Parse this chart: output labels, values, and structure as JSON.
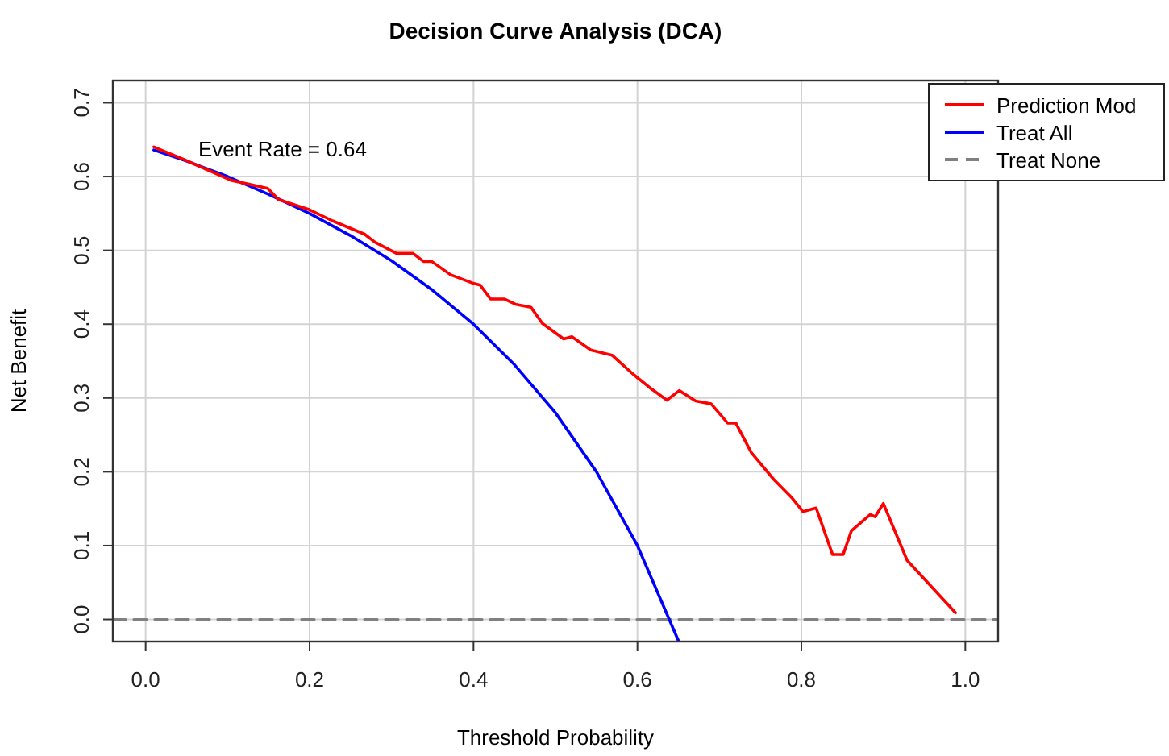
{
  "chart_data": {
    "type": "line",
    "title": "Decision Curve Analysis (DCA)",
    "xlabel": "Threshold Probability",
    "ylabel": "Net Benefit",
    "xlim": [
      -0.04,
      1.04
    ],
    "ylim": [
      -0.03,
      0.73
    ],
    "xticks": [
      {
        "value": 0,
        "label": "0.0"
      },
      0.2,
      0.4,
      0.6,
      0.8,
      {
        "value": 1,
        "label": "1.0"
      }
    ],
    "yticks": [
      {
        "value": 0,
        "label": "0.0"
      },
      0.1,
      0.2,
      0.3,
      0.4,
      0.5,
      0.6,
      0.7
    ],
    "grid": true,
    "legend": "top right",
    "marker": "none",
    "annotations": [
      "Event Rate = 0.64"
    ],
    "series": [
      {
        "name": "Prediction Mod",
        "color": "#ff0000",
        "line_style": "solid",
        "x": [
          0.01,
          0.045,
          0.104,
          0.149,
          0.162,
          0.2,
          0.228,
          0.267,
          0.28,
          0.306,
          0.326,
          0.339,
          0.349,
          0.372,
          0.398,
          0.408,
          0.421,
          0.438,
          0.451,
          0.47,
          0.484,
          0.51,
          0.52,
          0.543,
          0.569,
          0.595,
          0.615,
          0.636,
          0.651,
          0.671,
          0.69,
          0.71,
          0.72,
          0.739,
          0.766,
          0.789,
          0.802,
          0.818,
          0.838,
          0.851,
          0.861,
          0.884,
          0.89,
          0.9,
          0.929,
          0.959,
          0.988
        ],
        "values": [
          0.64,
          0.624,
          0.595,
          0.584,
          0.569,
          0.555,
          0.54,
          0.522,
          0.511,
          0.496,
          0.496,
          0.485,
          0.485,
          0.467,
          0.456,
          0.453,
          0.434,
          0.434,
          0.427,
          0.423,
          0.401,
          0.38,
          0.383,
          0.365,
          0.358,
          0.332,
          0.314,
          0.297,
          0.31,
          0.296,
          0.292,
          0.266,
          0.266,
          0.226,
          0.19,
          0.164,
          0.146,
          0.151,
          0.088,
          0.088,
          0.12,
          0.142,
          0.139,
          0.157,
          0.08,
          0.044,
          0.009
        ]
      },
      {
        "name": "Treat All",
        "color": "#0000ff",
        "line_style": "solid",
        "x": [
          0.01,
          0.05,
          0.1,
          0.15,
          0.2,
          0.25,
          0.3,
          0.35,
          0.4,
          0.45,
          0.5,
          0.55,
          0.6,
          0.65
        ],
        "values": [
          0.636,
          0.621,
          0.6,
          0.576,
          0.55,
          0.52,
          0.486,
          0.446,
          0.4,
          0.345,
          0.28,
          0.2,
          0.1,
          -0.029
        ]
      },
      {
        "name": "Treat None",
        "color": "#808080",
        "line_style": "dashed",
        "x": [
          -0.04,
          1.04
        ],
        "values": [
          0,
          0
        ]
      }
    ]
  }
}
